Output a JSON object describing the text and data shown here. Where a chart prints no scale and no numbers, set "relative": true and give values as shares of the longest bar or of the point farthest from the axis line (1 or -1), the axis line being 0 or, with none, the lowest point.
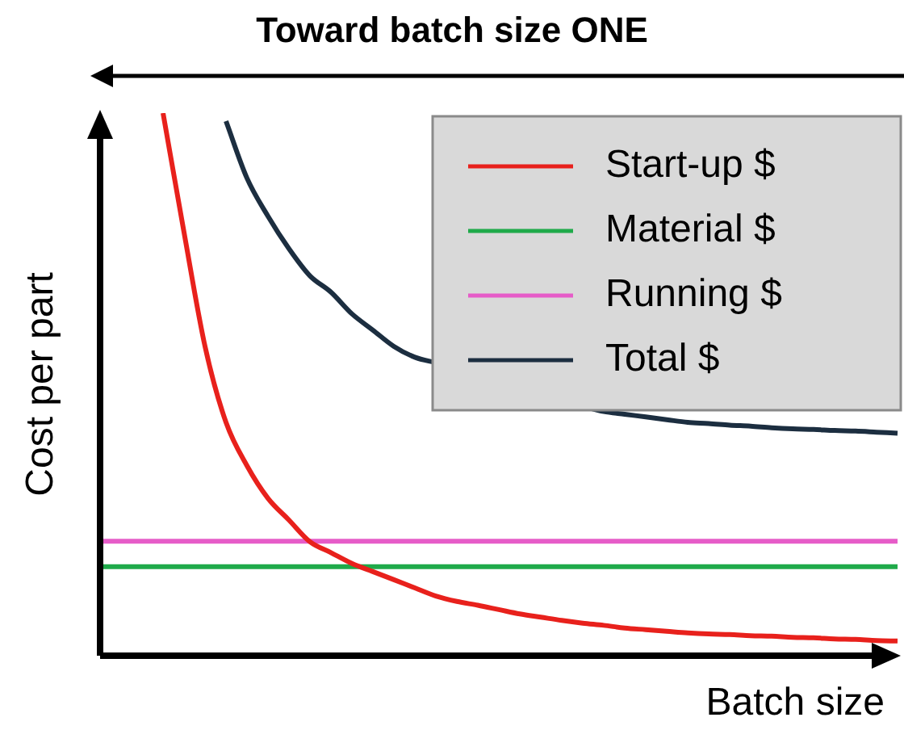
{
  "chart_data": {
    "type": "line",
    "title": "Toward batch size ONE",
    "xlabel": "Batch size",
    "ylabel": "Cost per part",
    "relative": true,
    "legend": "top right",
    "marker": "none",
    "categories": [
      null,
      null,
      null,
      null,
      null,
      null,
      null,
      null,
      null,
      null,
      null,
      null,
      null,
      null,
      null,
      null,
      null,
      null,
      null,
      null,
      null,
      null,
      null,
      null,
      null,
      null,
      null,
      null,
      null,
      null,
      null,
      null,
      null,
      null,
      null,
      null,
      null,
      null,
      null
    ],
    "series": [
      {
        "name": "Start-up $",
        "color": "#e8211c",
        "values": [
          null,
          null,
          null,
          1.0,
          0.78,
          0.57,
          0.43,
          0.35,
          0.29,
          0.25,
          0.21,
          0.19,
          0.17,
          0.155,
          0.14,
          0.125,
          0.11,
          0.1,
          0.093,
          0.085,
          0.077,
          0.071,
          0.065,
          0.06,
          0.056,
          0.051,
          0.048,
          0.045,
          0.042,
          0.04,
          0.039,
          0.037,
          0.036,
          0.034,
          0.033,
          0.031,
          0.03,
          0.028,
          0.027
        ]
      },
      {
        "name": "Material $",
        "color": "#1faa4a",
        "values": [
          0.164,
          0.164,
          0.164,
          0.164,
          0.164,
          0.164,
          0.164,
          0.164,
          0.164,
          0.164,
          0.164,
          0.164,
          0.164,
          0.164,
          0.164,
          0.164,
          0.164,
          0.164,
          0.164,
          0.164,
          0.164,
          0.164,
          0.164,
          0.164,
          0.164,
          0.164,
          0.164,
          0.164,
          0.164,
          0.164,
          0.164,
          0.164,
          0.164,
          0.164,
          0.164,
          0.164,
          0.164,
          0.164,
          0.164
        ]
      },
      {
        "name": "Running $",
        "color": "#e65cc8",
        "values": [
          0.211,
          0.211,
          0.211,
          0.211,
          0.211,
          0.211,
          0.211,
          0.211,
          0.211,
          0.211,
          0.211,
          0.211,
          0.211,
          0.211,
          0.211,
          0.211,
          0.211,
          0.211,
          0.211,
          0.211,
          0.211,
          0.211,
          0.211,
          0.211,
          0.211,
          0.211,
          0.211,
          0.211,
          0.211,
          0.211,
          0.211,
          0.211,
          0.211,
          0.211,
          0.211,
          0.211,
          0.211,
          0.211,
          0.211
        ]
      },
      {
        "name": "Total $",
        "color": "#1c2e40",
        "values": [
          null,
          null,
          null,
          null,
          null,
          null,
          0.985,
          0.88,
          0.81,
          0.75,
          0.7,
          0.67,
          0.63,
          0.6,
          0.57,
          0.55,
          0.54,
          null,
          null,
          null,
          null,
          null,
          null,
          0.46,
          0.45,
          0.445,
          0.44,
          0.435,
          0.43,
          0.428,
          0.425,
          0.423,
          0.42,
          0.418,
          0.417,
          0.415,
          0.414,
          0.412,
          0.41
        ]
      }
    ]
  }
}
